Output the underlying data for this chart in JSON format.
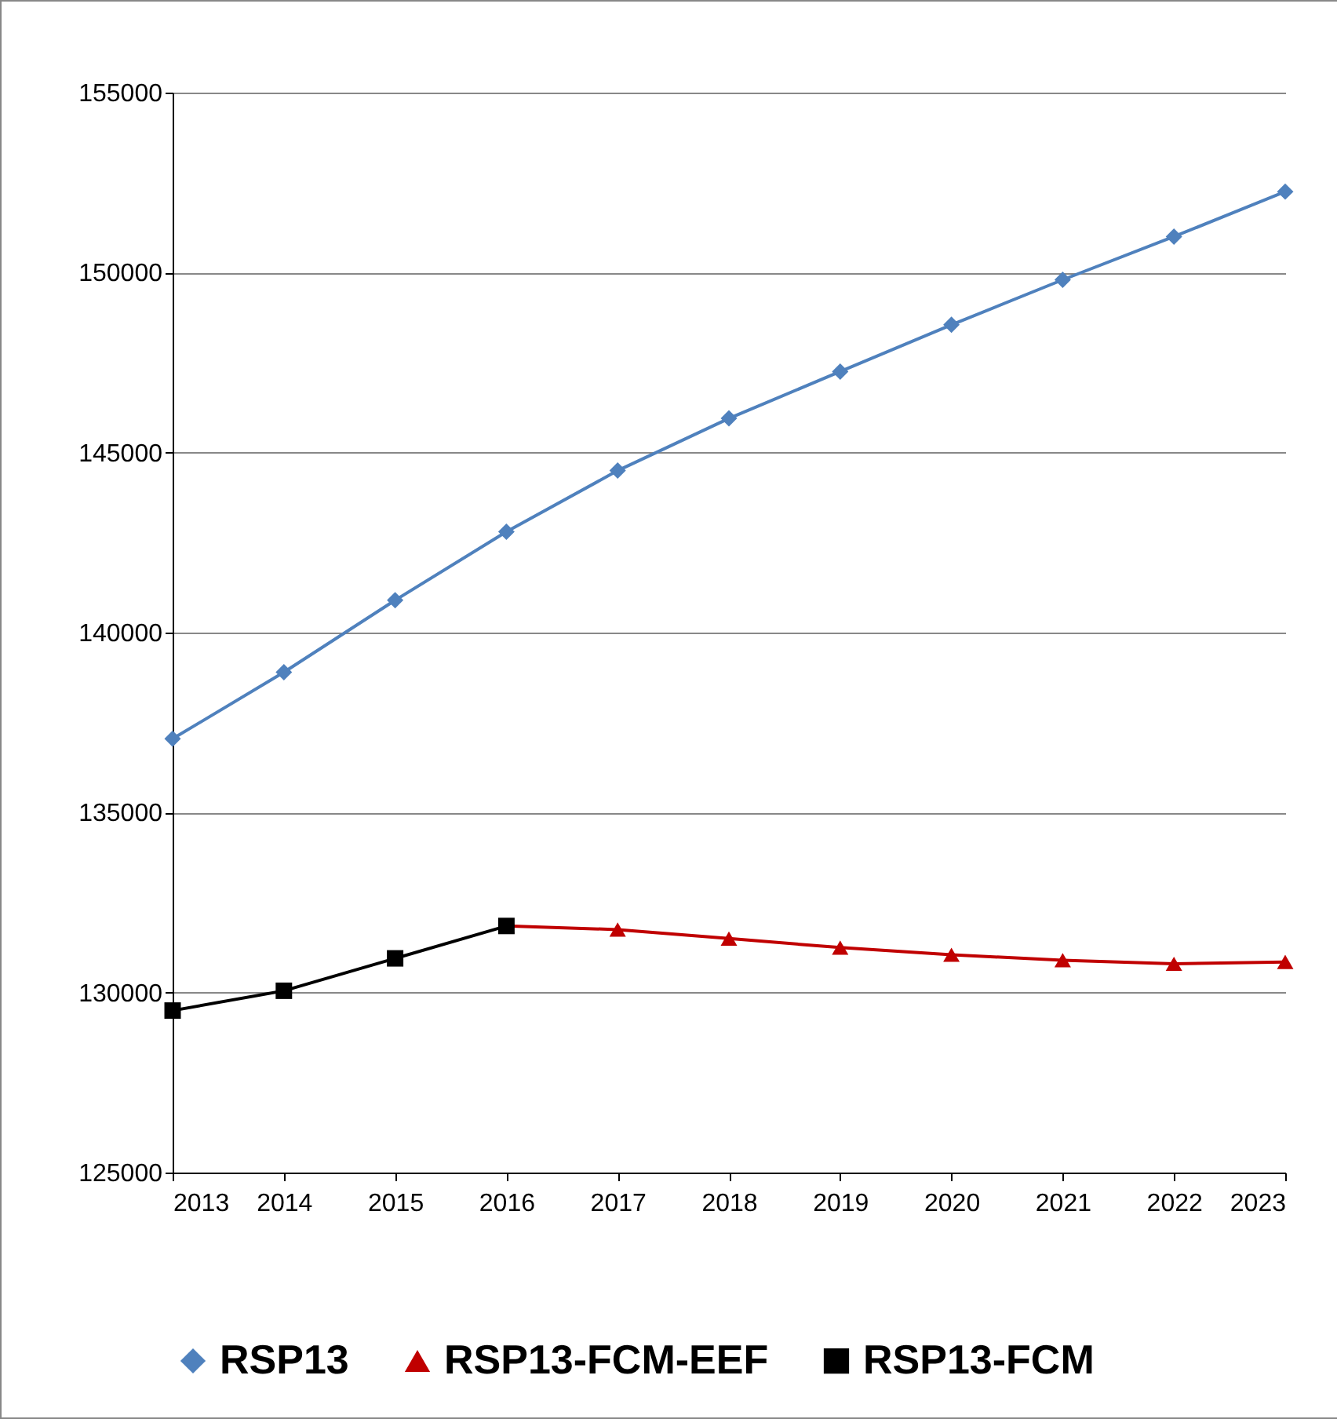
{
  "chart_data": {
    "type": "line",
    "x": [
      2013,
      2014,
      2015,
      2016,
      2017,
      2018,
      2019,
      2020,
      2021,
      2022,
      2023
    ],
    "series": [
      {
        "name": "RSP13",
        "color": "#4f81bd",
        "marker": "diamond",
        "values": [
          137050,
          138900,
          140900,
          142800,
          144500,
          145950,
          147250,
          148550,
          149800,
          151000,
          152250
        ]
      },
      {
        "name": "RSP13-FCM-EEF",
        "color": "#c00000",
        "marker": "triangle",
        "values": [
          null,
          null,
          null,
          131850,
          131750,
          131500,
          131250,
          131050,
          130900,
          130800,
          130850
        ]
      },
      {
        "name": "RSP13-FCM",
        "color": "#000000",
        "marker": "square",
        "values": [
          129500,
          130050,
          130950,
          131850,
          null,
          null,
          null,
          null,
          null,
          null,
          null
        ]
      }
    ],
    "xlim": [
      2013,
      2023
    ],
    "xticks": [
      2013,
      2014,
      2015,
      2016,
      2017,
      2018,
      2019,
      2020,
      2021,
      2022,
      2023
    ],
    "ylim": [
      125000,
      155000
    ],
    "yticks": [
      125000,
      130000,
      135000,
      140000,
      145000,
      150000,
      155000
    ],
    "grid": "y",
    "legend": "bottom",
    "line_style": "solid"
  }
}
